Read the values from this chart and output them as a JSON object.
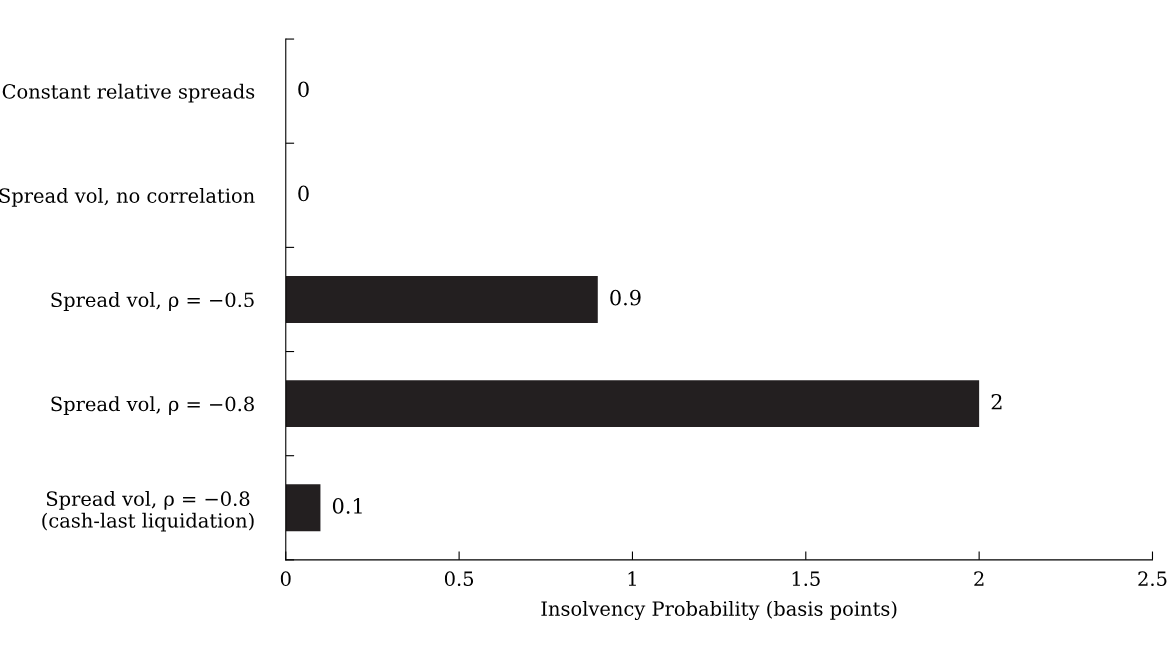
{
  "chart_data": {
    "type": "bar",
    "orientation": "horizontal",
    "xlabel": "Insolvency Probability (basis points)",
    "categories": [
      "Constant relative spreads",
      "Spread vol, no correlation",
      "Spread vol, ρ = −0.5",
      "Spread vol, ρ = −0.8",
      "Spread vol, ρ = −0.8\n(cash-last liquidation)"
    ],
    "values": [
      0,
      0,
      0.9,
      2,
      0.1
    ],
    "color": "#231f20",
    "xlim": [
      0,
      2.5
    ],
    "xticks": [
      0,
      0.5,
      1,
      1.5,
      2,
      2.5
    ],
    "data_labels": true,
    "grid": false,
    "legend": false
  }
}
